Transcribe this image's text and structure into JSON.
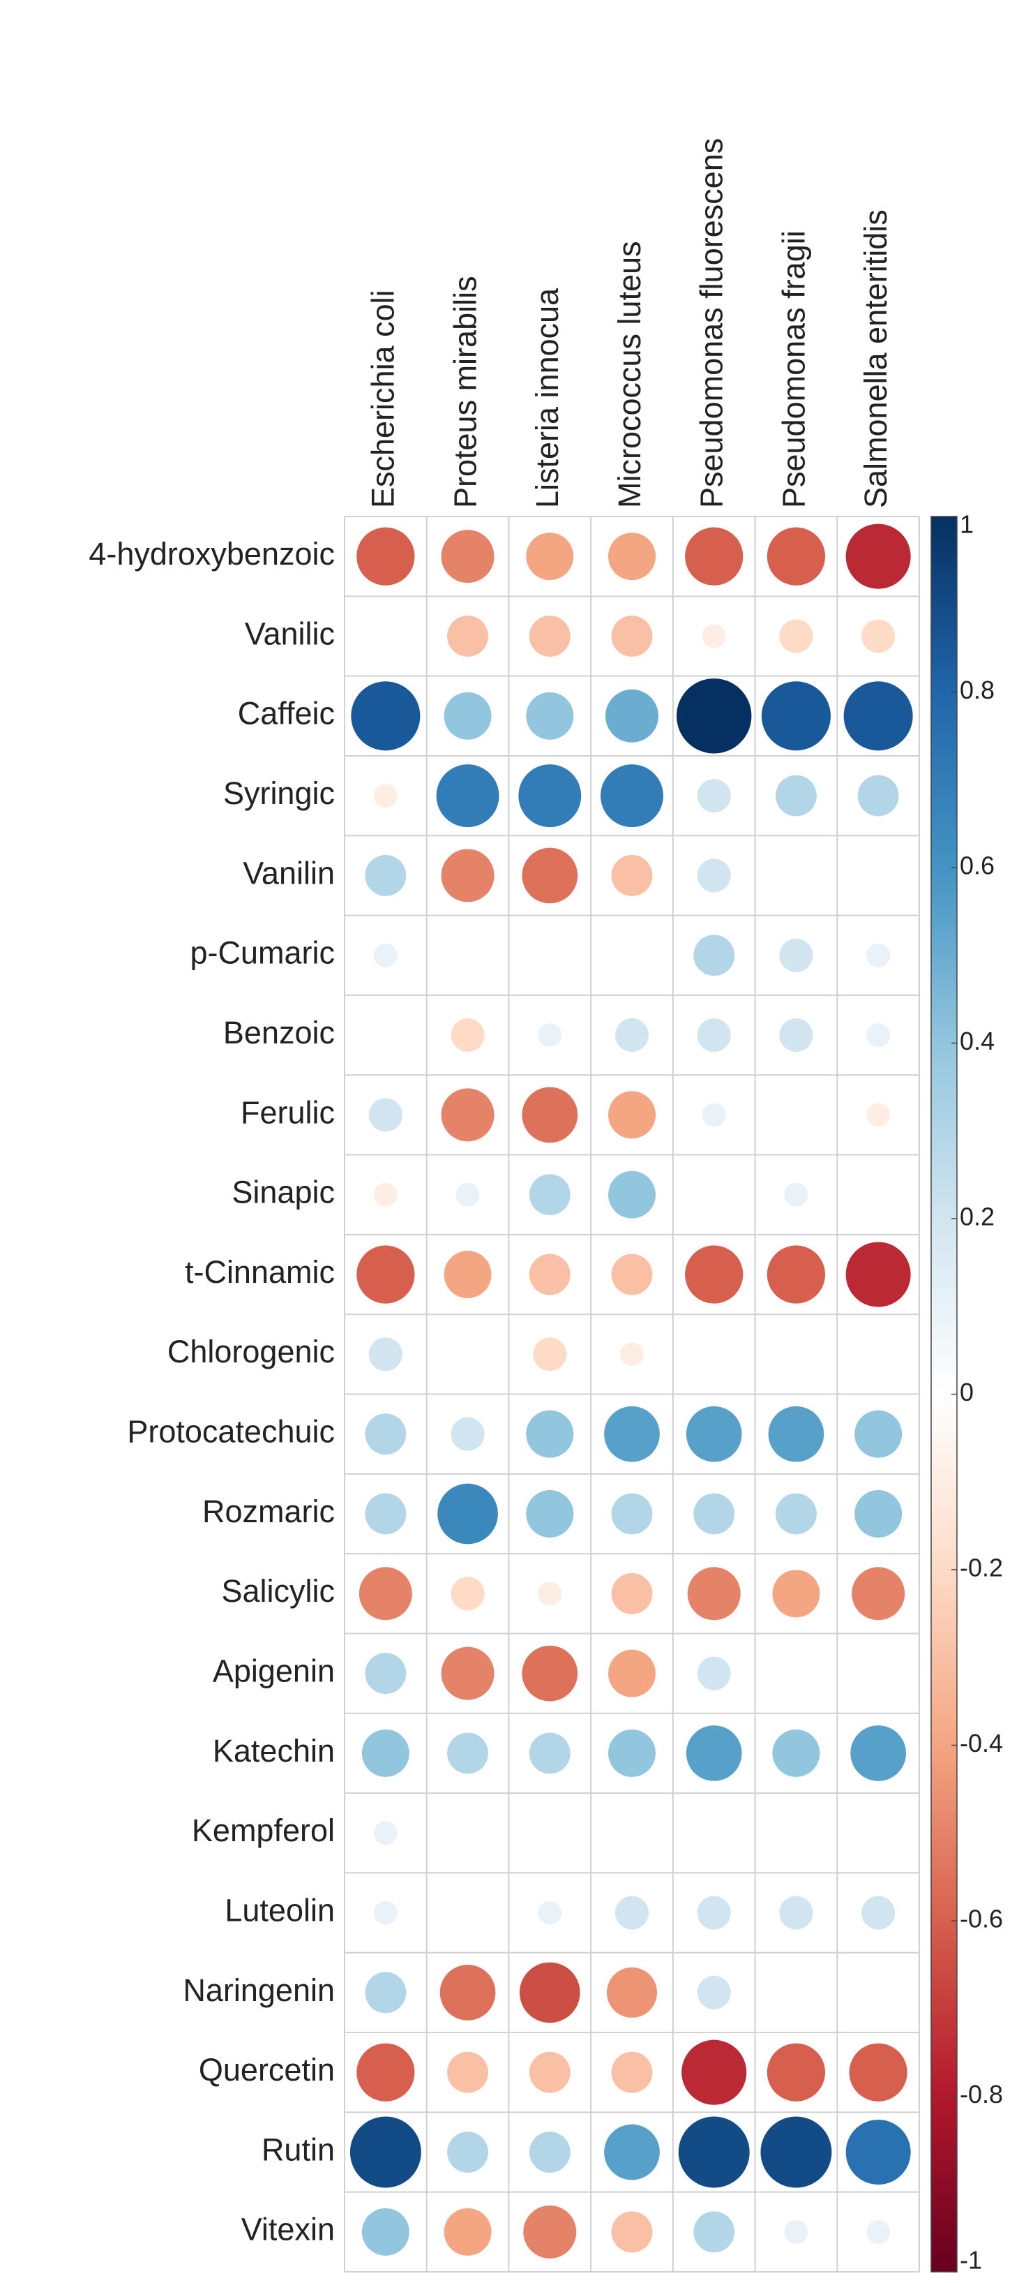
{
  "chart_data": {
    "type": "corrplot",
    "columns": [
      "Escherichia coli",
      "Proteus mirabilis",
      "Listeria innocua",
      "Micrococcus luteus",
      "Pseudomonas fluorescens",
      "Pseudomonas fragii",
      "Salmonella enteritidis"
    ],
    "rows": [
      "4-hydroxybenzoic",
      "Vanilic",
      "Caffeic",
      "Syringic",
      "Vanilin",
      "p-Cumaric",
      "Benzoic",
      "Ferulic",
      "Sinapic",
      "t-Cinnamic",
      "Chlorogenic",
      "Protocatechuic",
      "Rozmaric",
      "Salicylic",
      "Apigenin",
      "Katechin",
      "Kempferol",
      "Luteolin",
      "Naringenin",
      "Quercetin",
      "Rutin",
      "Vitexin"
    ],
    "values": [
      [
        -0.6,
        -0.5,
        -0.4,
        -0.4,
        -0.6,
        -0.6,
        -0.75
      ],
      [
        0,
        -0.3,
        -0.3,
        -0.3,
        -0.1,
        -0.2,
        -0.2
      ],
      [
        0.85,
        0.4,
        0.4,
        0.5,
        1.0,
        0.85,
        0.85
      ],
      [
        -0.1,
        0.7,
        0.7,
        0.7,
        0.2,
        0.3,
        0.3
      ],
      [
        0.3,
        -0.5,
        -0.55,
        -0.3,
        0.2,
        0,
        0
      ],
      [
        0.1,
        0,
        0,
        0,
        0.3,
        0.2,
        0.1
      ],
      [
        0,
        -0.2,
        0.1,
        0.2,
        0.2,
        0.2,
        0.1
      ],
      [
        0.2,
        -0.5,
        -0.55,
        -0.4,
        0.1,
        0,
        -0.1
      ],
      [
        -0.1,
        0.1,
        0.3,
        0.4,
        0,
        0.1,
        0
      ],
      [
        -0.6,
        -0.4,
        -0.3,
        -0.3,
        -0.6,
        -0.6,
        -0.75
      ],
      [
        0.2,
        0,
        -0.2,
        -0.1,
        0,
        0,
        0
      ],
      [
        0.3,
        0.2,
        0.4,
        0.55,
        0.55,
        0.55,
        0.4
      ],
      [
        0.3,
        0.65,
        0.4,
        0.3,
        0.3,
        0.3,
        0.4
      ],
      [
        -0.5,
        -0.2,
        -0.1,
        -0.3,
        -0.5,
        -0.4,
        -0.5
      ],
      [
        0.3,
        -0.5,
        -0.55,
        -0.4,
        0.2,
        0,
        0
      ],
      [
        0.4,
        0.3,
        0.3,
        0.4,
        0.55,
        0.4,
        0.55
      ],
      [
        0.1,
        0,
        0,
        0,
        0,
        0,
        0
      ],
      [
        0.1,
        0,
        0.1,
        0.2,
        0.2,
        0.2,
        0.2
      ],
      [
        0.3,
        -0.55,
        -0.65,
        -0.45,
        0.2,
        0,
        0
      ],
      [
        -0.6,
        -0.3,
        -0.3,
        -0.3,
        -0.75,
        -0.6,
        -0.6
      ],
      [
        0.9,
        0.3,
        0.3,
        0.55,
        0.9,
        0.9,
        0.75
      ],
      [
        0.4,
        -0.4,
        -0.5,
        -0.3,
        0.3,
        0.1,
        0.1
      ]
    ],
    "colormap": [
      "#67001F",
      "#B2182B",
      "#D6604D",
      "#F4A582",
      "#FDDBC7",
      "#FFFFFF",
      "#D1E5F0",
      "#92C5DE",
      "#4393C3",
      "#2166AC",
      "#053061"
    ],
    "colorbar_lim": [
      -1,
      1
    ],
    "colorbar_ticks": [
      1,
      0.8,
      0.6,
      0.4,
      0.2,
      0,
      -0.2,
      -0.4,
      -0.6,
      -0.8,
      -1
    ]
  }
}
